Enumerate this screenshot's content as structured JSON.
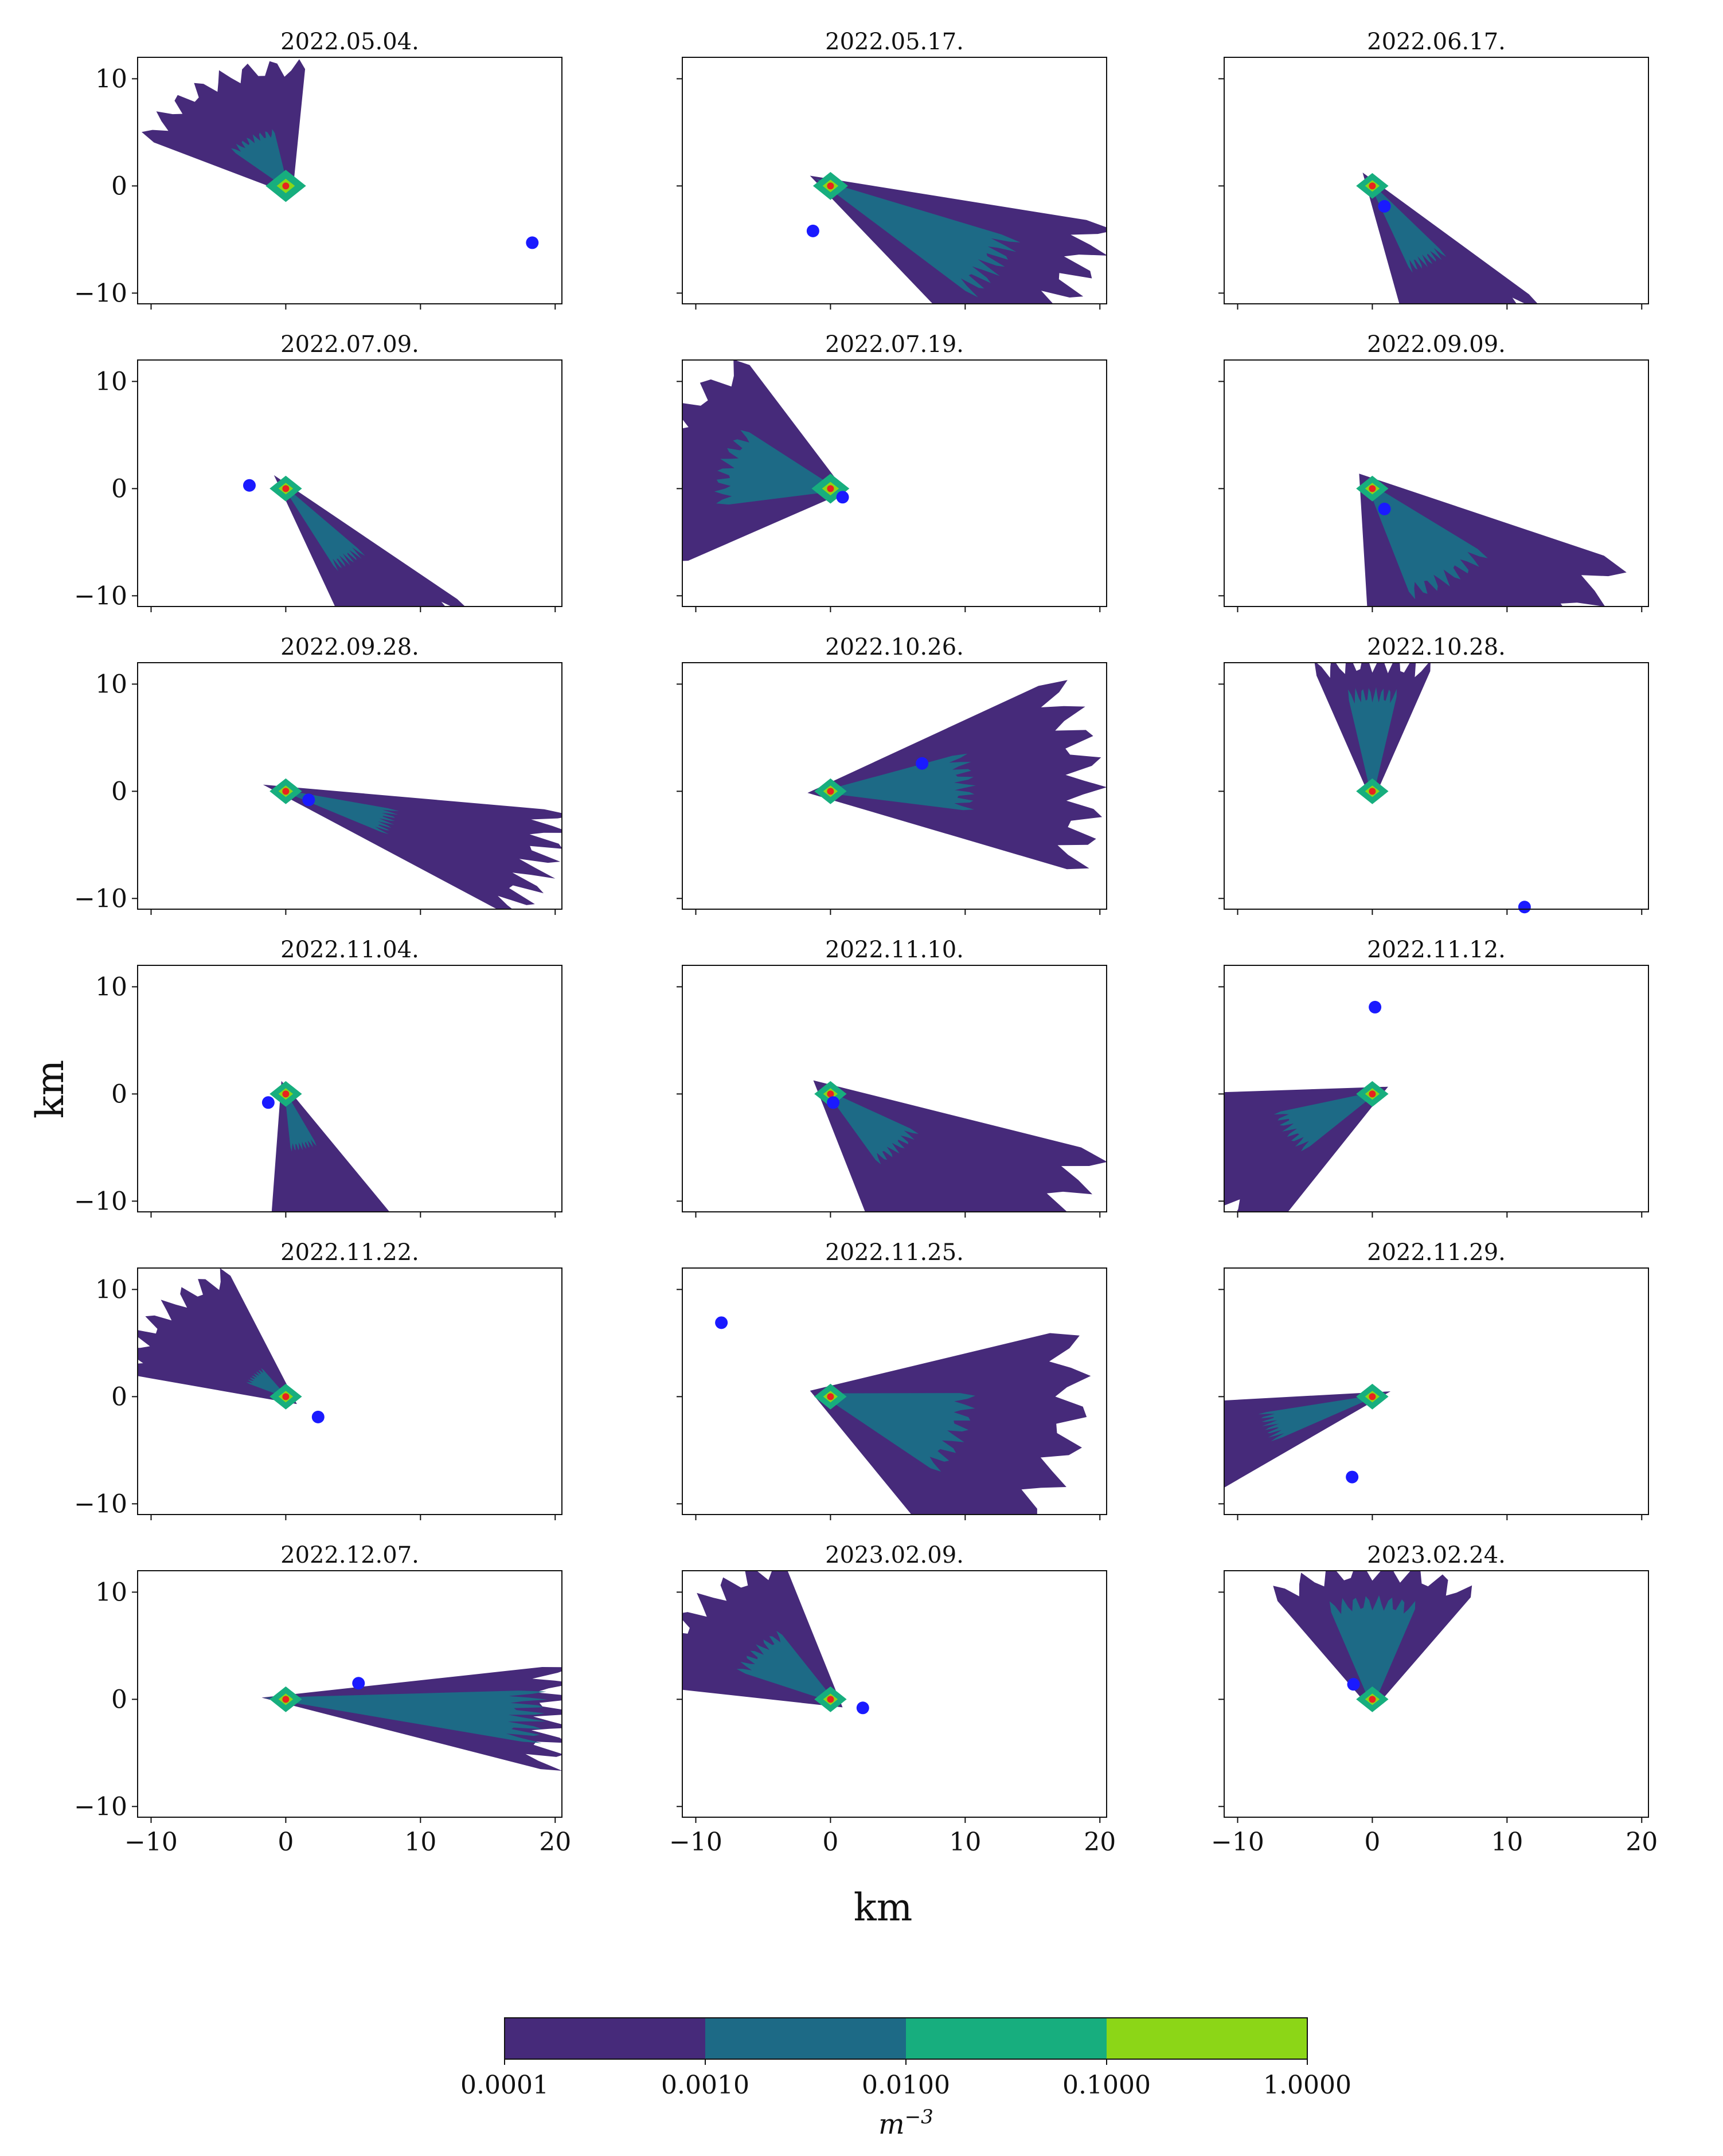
{
  "chart_data": {
    "type": "contour",
    "xlabel": "km",
    "ylabel": "km",
    "xlim": [
      -11,
      20.5
    ],
    "ylim": [
      -11,
      12
    ],
    "xticks": [
      -10,
      0,
      10,
      20
    ],
    "yticks": [
      -10,
      0,
      10
    ],
    "xtick_labels": [
      "−10",
      "0",
      "10",
      "20"
    ],
    "ytick_labels": [
      "−10",
      "0",
      "10"
    ],
    "colorbar": {
      "levels": [
        "0.0001",
        "0.0010",
        "0.0100",
        "0.1000",
        "1.0000"
      ],
      "colors": [
        "#462a7a",
        "#1d6a86",
        "#17ae7e",
        "#8cd617"
      ],
      "unit": "m",
      "unit_exponent": "−3"
    },
    "source_marker": {
      "x": 0,
      "y": 0,
      "color": "#e8231f"
    },
    "receptor_color": "#1a1aff",
    "panels": [
      {
        "title": "2022.05.04.",
        "receptor": [
          18.3,
          -5.3
        ],
        "plume": {
          "dir": 120,
          "spread": 75,
          "r1": 11,
          "r2": 5,
          "r3": 1.5
        }
      },
      {
        "title": "2022.05.17.",
        "receptor": [
          -1.3,
          -4.2
        ],
        "plume": {
          "dir": -32,
          "spread": 45,
          "r1": 20,
          "r2": 14,
          "r3": 1.3
        }
      },
      {
        "title": "2022.06.17.",
        "receptor": [
          0.9,
          -1.9
        ],
        "plume": {
          "dir": -60,
          "spread": 38,
          "r1": 16,
          "r2": 8,
          "r3": 1.2
        }
      },
      {
        "title": "2022.07.09.",
        "receptor": [
          -2.7,
          0.3
        ],
        "plume": {
          "dir": -55,
          "spread": 32,
          "r1": 17,
          "r2": 8,
          "r3": 1.2
        }
      },
      {
        "title": "2022.07.19.",
        "receptor": [
          0.9,
          -0.8
        ],
        "plume": {
          "dir": 165,
          "spread": 95,
          "r1": 13,
          "r2": 8,
          "r3": 1.4
        }
      },
      {
        "title": "2022.09.09.",
        "receptor": [
          0.9,
          -1.9
        ],
        "plume": {
          "dir": -55,
          "spread": 70,
          "r1": 19,
          "r2": 10,
          "r3": 1.2
        }
      },
      {
        "title": "2022.09.28.",
        "receptor": [
          1.7,
          -0.8
        ],
        "plume": {
          "dir": -20,
          "spread": 30,
          "r1": 20,
          "r2": 8,
          "r3": 1.2
        }
      },
      {
        "title": "2022.10.26.",
        "receptor": [
          6.8,
          2.6
        ],
        "plume": {
          "dir": 5,
          "spread": 55,
          "r1": 19,
          "r2": 10,
          "r3": 1.2
        }
      },
      {
        "title": "2022.10.28.",
        "receptor": [
          11.3,
          -10.8
        ],
        "plume": {
          "dir": 90,
          "spread": 42,
          "r1": 12,
          "r2": 9,
          "r3": 1.2
        }
      },
      {
        "title": "2022.11.04.",
        "receptor": [
          -1.3,
          -0.8
        ],
        "plume": {
          "dir": -75,
          "spread": 40,
          "r1": 14,
          "r2": 5,
          "r3": 1.2
        }
      },
      {
        "title": "2022.11.10.",
        "receptor": [
          0.2,
          -0.8
        ],
        "plume": {
          "dir": -45,
          "spread": 60,
          "r1": 20,
          "r2": 7,
          "r3": 1.2
        }
      },
      {
        "title": "2022.11.12.",
        "receptor": [
          0.2,
          8.1
        ],
        "plume": {
          "dir": -150,
          "spread": 60,
          "r1": 15,
          "r2": 7,
          "r3": 1.2
        }
      },
      {
        "title": "2022.11.22.",
        "receptor": [
          2.4,
          -1.9
        ],
        "plume": {
          "dir": 140,
          "spread": 60,
          "r1": 12,
          "r2": 3,
          "r3": 1.2
        }
      },
      {
        "title": "2022.11.25.",
        "receptor": [
          -8.1,
          6.9
        ],
        "plume": {
          "dir": -20,
          "spread": 80,
          "r1": 18,
          "r2": 10,
          "r3": 1.2
        }
      },
      {
        "title": "2022.11.29.",
        "receptor": [
          -1.5,
          -7.5
        ],
        "plume": {
          "dir": -160,
          "spread": 35,
          "r1": 16,
          "r2": 8,
          "r3": 1.2
        }
      },
      {
        "title": "2022.12.07.",
        "receptor": [
          5.4,
          1.5
        ],
        "plume": {
          "dir": -5,
          "spread": 28,
          "r1": 20,
          "r2": 18,
          "r3": 1.2
        }
      },
      {
        "title": "2023.02.09.",
        "receptor": [
          2.4,
          -0.8
        ],
        "plume": {
          "dir": 140,
          "spread": 70,
          "r1": 13,
          "r2": 7,
          "r3": 1.2
        }
      },
      {
        "title": "2023.02.24.",
        "receptor": [
          -1.4,
          1.4
        ],
        "plume": {
          "dir": 90,
          "spread": 75,
          "r1": 12,
          "r2": 9,
          "r3": 1.2
        }
      }
    ]
  }
}
